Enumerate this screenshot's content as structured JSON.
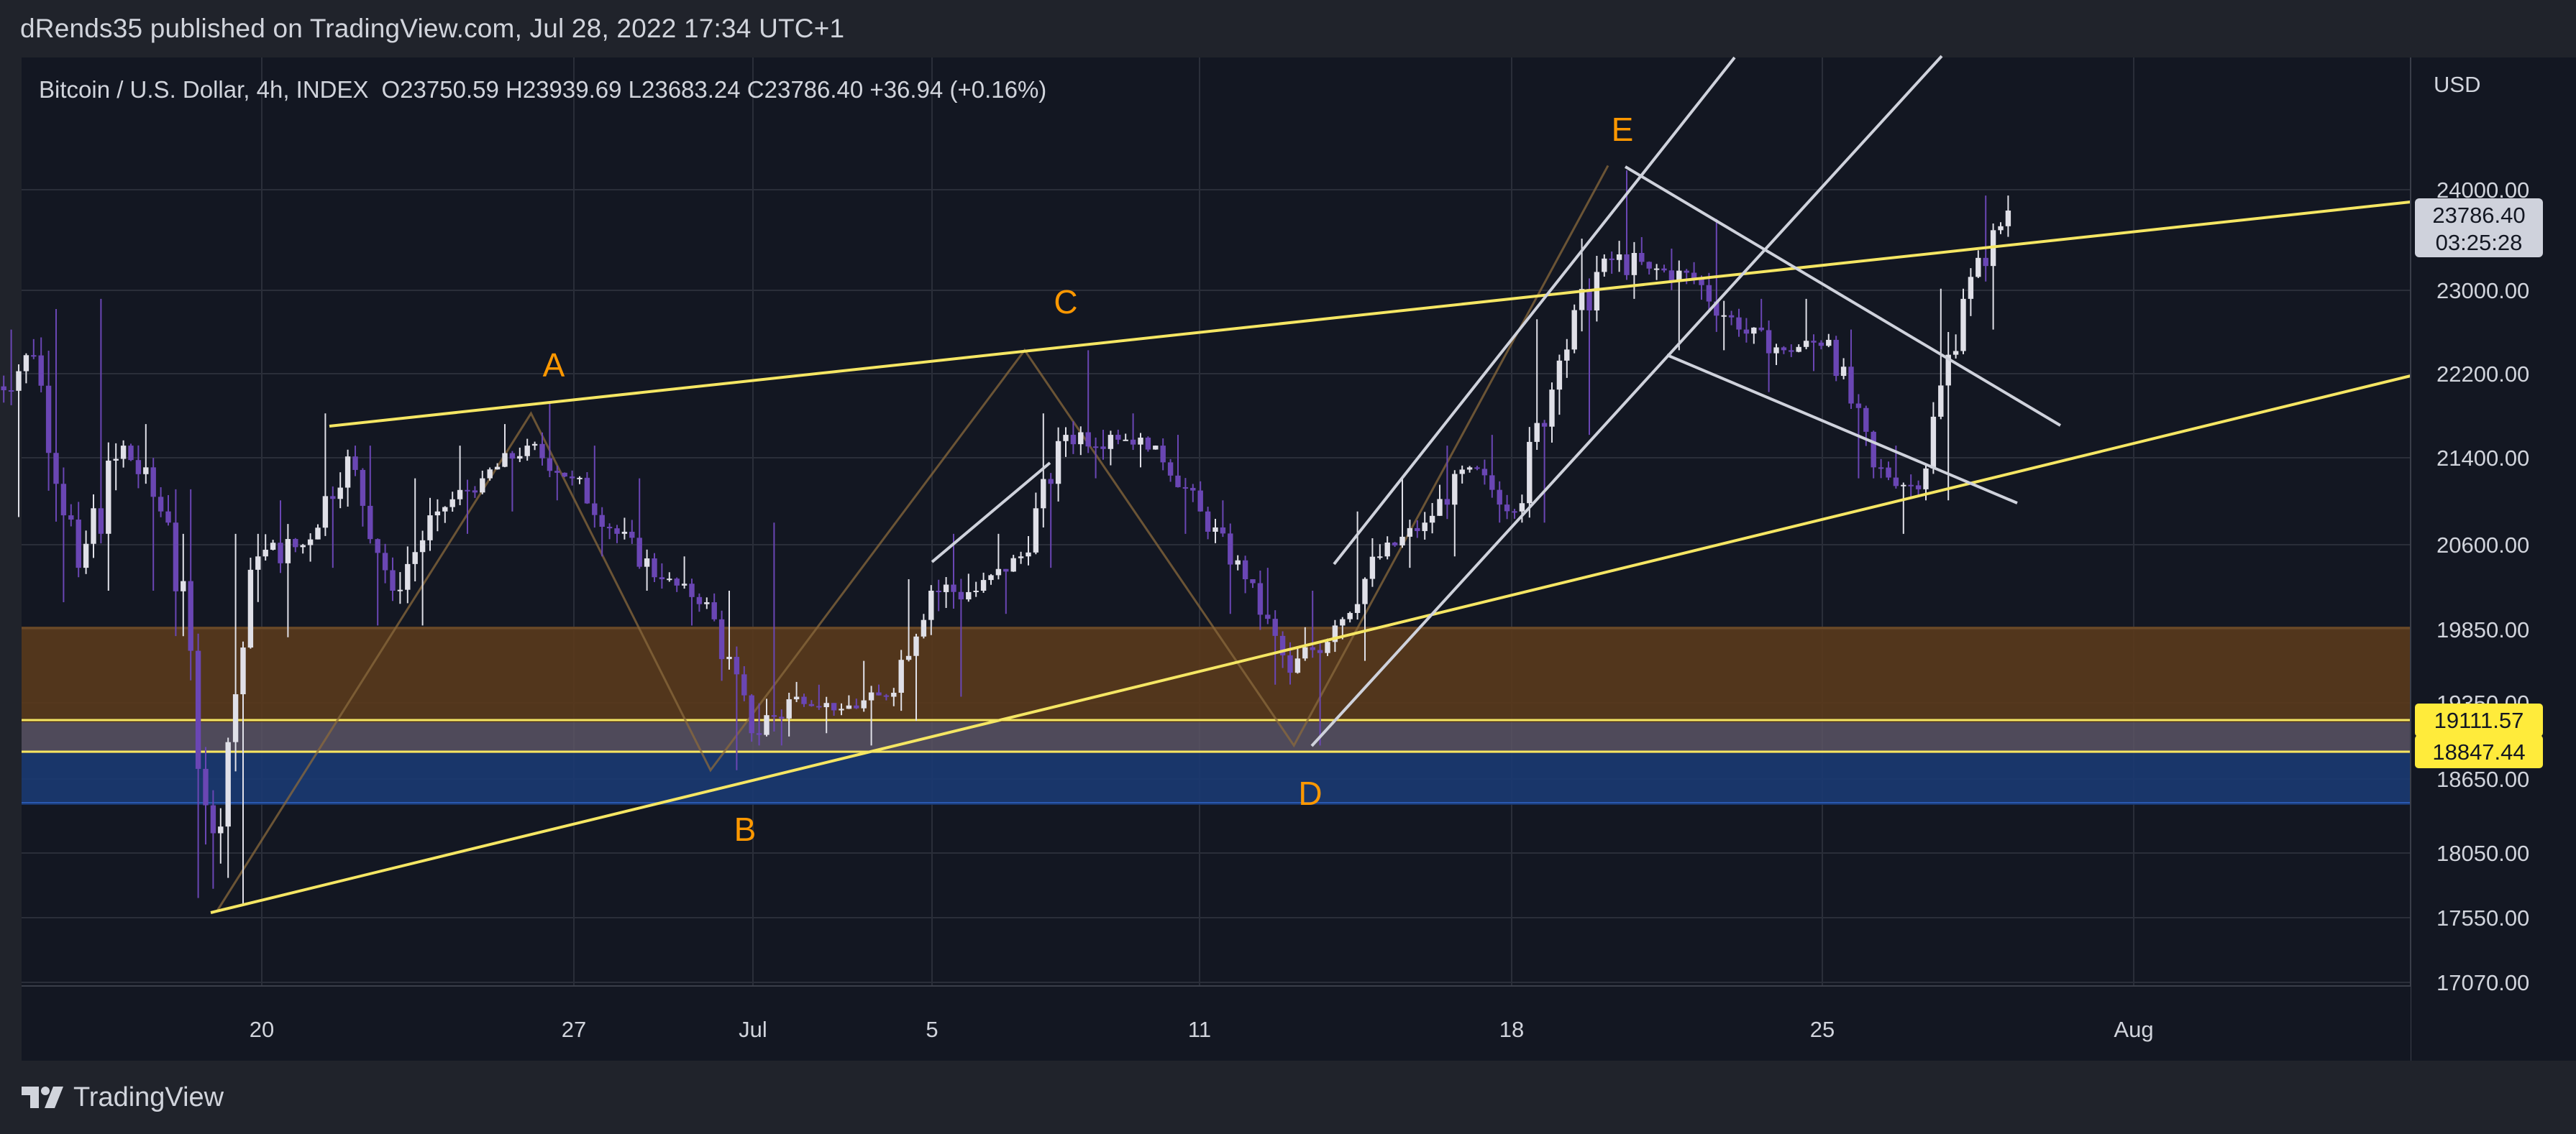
{
  "header": {
    "publish_line": "dRends35 published on TradingView.com, Jul 28, 2022 17:34 UTC+1"
  },
  "footer": {
    "brand": "TradingView"
  },
  "legend": {
    "symbol": "Bitcoin / U.S. Dollar, 4h, INDEX",
    "ohlc_text": "O23750.59  H23939.69  L23683.24  C23786.40  +36.94 (+0.16%)"
  },
  "colors": {
    "background": "#131722",
    "bull_candle": "#e0e0e8",
    "bear_candle": "#6a46b4",
    "trendline": "#f5e663",
    "channel_line": "#cfd2dc",
    "zigzag": "#8a6a3c",
    "label_orange": "#ff9800",
    "supply_zone": "#5a3a1c",
    "demand_zone": "#1b3a72",
    "grid": "#2a2e39",
    "axis_text": "#d1d4dc"
  },
  "chart_data": {
    "type": "candlestick",
    "title": "Bitcoin / U.S. Dollar, 4h, INDEX",
    "currency": "USD",
    "last_price": "23786.40",
    "countdown": "03:25:28",
    "x_ticks": [
      "20",
      "27",
      "Jul",
      "5",
      "11",
      "18",
      "25",
      "Aug"
    ],
    "y_ticks": [
      "24000.00",
      "23000.00",
      "22200.00",
      "21400.00",
      "20600.00",
      "19850.00",
      "19350.00",
      "18650.00",
      "18050.00",
      "17550.00",
      "17070.00"
    ],
    "y_scale": "log",
    "ylim": [
      16500,
      25200
    ],
    "price_labels": [
      {
        "label": "19111.57",
        "price": 19111.57
      },
      {
        "label": "18847.44",
        "price": 18847.44
      }
    ],
    "wave_labels": [
      "A",
      "B",
      "C",
      "D",
      "E"
    ],
    "candles": [
      {
        "date": "2022-06-14",
        "open": 22000,
        "close": 22350,
        "high": 22600,
        "low": 20850
      },
      {
        "date": "2022-06-15",
        "open": 22350,
        "close": 20400,
        "high": 22800,
        "low": 20100
      },
      {
        "date": "2022-06-16",
        "open": 20400,
        "close": 21500,
        "high": 22900,
        "low": 20200
      },
      {
        "date": "2022-06-17",
        "open": 21500,
        "close": 20800,
        "high": 21700,
        "low": 20200
      },
      {
        "date": "2022-06-18",
        "open": 20800,
        "close": 18200,
        "high": 21100,
        "low": 17700
      },
      {
        "date": "2022-06-19",
        "open": 18200,
        "close": 20500,
        "high": 20700,
        "low": 17650
      },
      {
        "date": "2022-06-20",
        "open": 20500,
        "close": 20600,
        "high": 21000,
        "low": 19800
      },
      {
        "date": "2022-06-21",
        "open": 20600,
        "close": 21400,
        "high": 21800,
        "low": 20400
      },
      {
        "date": "2022-06-22",
        "open": 21400,
        "close": 20200,
        "high": 21500,
        "low": 19900
      },
      {
        "date": "2022-06-23",
        "open": 20200,
        "close": 20900,
        "high": 21200,
        "low": 19900
      },
      {
        "date": "2022-06-24",
        "open": 20900,
        "close": 21200,
        "high": 21500,
        "low": 20700
      },
      {
        "date": "2022-06-25",
        "open": 21200,
        "close": 21500,
        "high": 21700,
        "low": 20900
      },
      {
        "date": "2022-06-26",
        "open": 21500,
        "close": 21200,
        "high": 21900,
        "low": 21000
      },
      {
        "date": "2022-06-27",
        "open": 21200,
        "close": 20700,
        "high": 21500,
        "low": 20500
      },
      {
        "date": "2022-06-28",
        "open": 20700,
        "close": 20300,
        "high": 21200,
        "low": 20200
      },
      {
        "date": "2022-06-29",
        "open": 20300,
        "close": 20100,
        "high": 20500,
        "low": 19900
      },
      {
        "date": "2022-06-30",
        "open": 20100,
        "close": 19000,
        "high": 20200,
        "low": 18700
      },
      {
        "date": "2022-07-01",
        "open": 19000,
        "close": 19300,
        "high": 20800,
        "low": 18900
      },
      {
        "date": "2022-07-02",
        "open": 19300,
        "close": 19200,
        "high": 19400,
        "low": 19000
      },
      {
        "date": "2022-07-03",
        "open": 19200,
        "close": 19300,
        "high": 19600,
        "low": 18900
      },
      {
        "date": "2022-07-04",
        "open": 19300,
        "close": 20200,
        "high": 20300,
        "low": 19100
      },
      {
        "date": "2022-07-05",
        "open": 20200,
        "close": 20200,
        "high": 20700,
        "low": 19300
      },
      {
        "date": "2022-07-06",
        "open": 20200,
        "close": 20500,
        "high": 20700,
        "low": 20000
      },
      {
        "date": "2022-07-07",
        "open": 20500,
        "close": 21600,
        "high": 21800,
        "low": 20400
      },
      {
        "date": "2022-07-08",
        "open": 21600,
        "close": 21600,
        "high": 22400,
        "low": 21200
      },
      {
        "date": "2022-07-09",
        "open": 21600,
        "close": 21500,
        "high": 21800,
        "low": 21300
      },
      {
        "date": "2022-07-10",
        "open": 21500,
        "close": 20900,
        "high": 21600,
        "low": 20700
      },
      {
        "date": "2022-07-11",
        "open": 20900,
        "close": 20300,
        "high": 21000,
        "low": 20000
      },
      {
        "date": "2022-07-12",
        "open": 20300,
        "close": 19500,
        "high": 20400,
        "low": 19400
      },
      {
        "date": "2022-07-13",
        "open": 19500,
        "close": 19900,
        "high": 20200,
        "low": 18900
      },
      {
        "date": "2022-07-14",
        "open": 19900,
        "close": 20500,
        "high": 20900,
        "low": 19600
      },
      {
        "date": "2022-07-15",
        "open": 20500,
        "close": 20800,
        "high": 21200,
        "low": 20400
      },
      {
        "date": "2022-07-16",
        "open": 20800,
        "close": 21300,
        "high": 21500,
        "low": 20500
      },
      {
        "date": "2022-07-17",
        "open": 21300,
        "close": 20900,
        "high": 21600,
        "low": 20800
      },
      {
        "date": "2022-07-18",
        "open": 20900,
        "close": 22300,
        "high": 22700,
        "low": 20800
      },
      {
        "date": "2022-07-19",
        "open": 22300,
        "close": 23300,
        "high": 23500,
        "low": 21600
      },
      {
        "date": "2022-07-20",
        "open": 23300,
        "close": 23200,
        "high": 24200,
        "low": 22900
      },
      {
        "date": "2022-07-21",
        "open": 23200,
        "close": 23100,
        "high": 23400,
        "low": 22400
      },
      {
        "date": "2022-07-22",
        "open": 23100,
        "close": 22600,
        "high": 23700,
        "low": 22400
      },
      {
        "date": "2022-07-23",
        "open": 22600,
        "close": 22400,
        "high": 22900,
        "low": 22000
      },
      {
        "date": "2022-07-24",
        "open": 22400,
        "close": 22500,
        "high": 22900,
        "low": 22200
      },
      {
        "date": "2022-07-25",
        "open": 22500,
        "close": 21300,
        "high": 22600,
        "low": 21200
      },
      {
        "date": "2022-07-26",
        "open": 21300,
        "close": 21100,
        "high": 21500,
        "low": 20700
      },
      {
        "date": "2022-07-27",
        "open": 21100,
        "close": 22900,
        "high": 23000,
        "low": 21000
      },
      {
        "date": "2022-07-28",
        "open": 22900,
        "close": 23786,
        "high": 23940,
        "low": 22600
      }
    ],
    "annotations": {
      "zigzag_path": [
        {
          "date": "2022-06-19",
          "price": 17600
        },
        {
          "date": "2022-06-26",
          "price": 21800
        },
        {
          "date": "2022-06-30",
          "price": 18700
        },
        {
          "date": "2022-07-07",
          "price": 22400
        },
        {
          "date": "2022-07-13",
          "price": 18900
        },
        {
          "date": "2022-07-20",
          "price": 24250
        }
      ]
    }
  }
}
